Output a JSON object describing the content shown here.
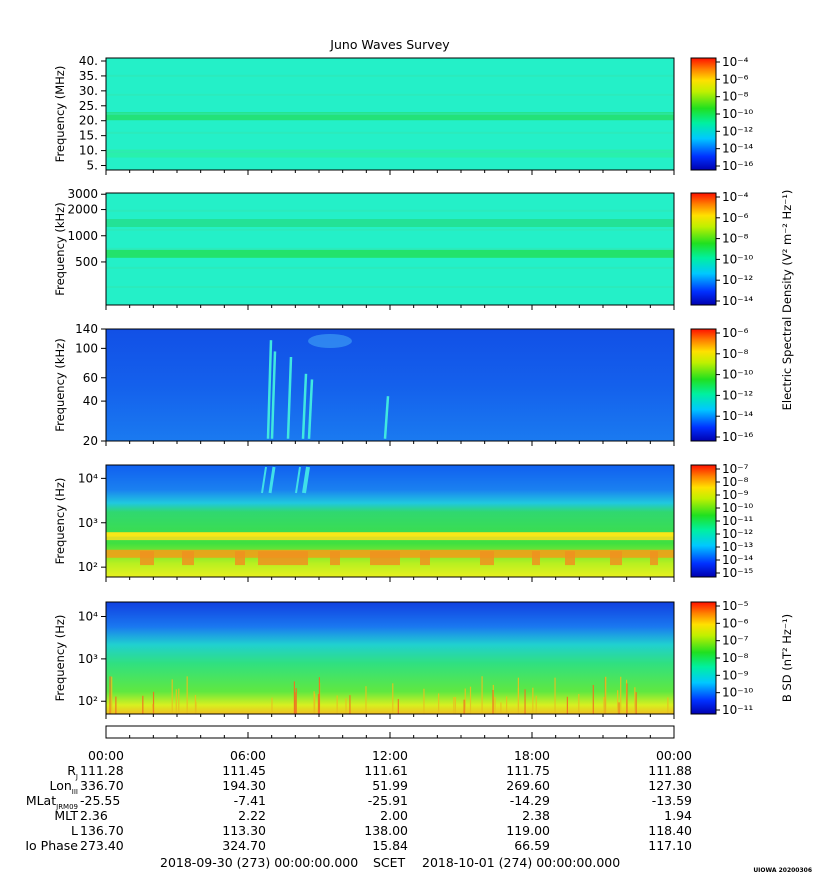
{
  "title": "Juno Waves Survey",
  "stamp": "UIOWA 20200306",
  "chart_data": [
    {
      "type": "heatmap",
      "ylabel": "Frequency (MHz)",
      "yscale": "linear",
      "ylim": [
        3.5,
        41
      ],
      "yticks": [
        5,
        10,
        15,
        20,
        25,
        30,
        35,
        40
      ],
      "yticklabels": [
        "5.",
        "10.",
        "15.",
        "20.",
        "25.",
        "30.",
        "35.",
        "40."
      ],
      "base_color": "#24f0c8",
      "bands": [
        {
          "y": 21.5,
          "color": "#24e070"
        },
        {
          "y": 9.0,
          "color": "#2af0a8"
        }
      ],
      "colorbar": {
        "exponents": [
          -4,
          -6,
          -8,
          -10,
          -12,
          -14,
          -16
        ],
        "label": ""
      }
    },
    {
      "type": "heatmap",
      "ylabel": "Frequency (kHz)",
      "yscale": "log",
      "ylim": [
        160,
        3100
      ],
      "yticks": [
        500,
        1000,
        2000,
        3000
      ],
      "yticklabels": [
        "500",
        "1000",
        "2000",
        "3000"
      ],
      "base_color": "#24f0c8",
      "bands": [
        {
          "y": 620,
          "color": "#24e060"
        },
        {
          "y": 1400,
          "color": "#24e090"
        }
      ],
      "colorbar": {
        "exponents": [
          -4,
          -6,
          -8,
          -10,
          -12,
          -14
        ],
        "label": "Electric Spectral Density (V² m⁻² Hz⁻¹)"
      }
    },
    {
      "type": "heatmap",
      "ylabel": "Frequency (kHz)",
      "yscale": "log",
      "ylim": [
        20,
        140
      ],
      "yticks": [
        20,
        40,
        60,
        100,
        140
      ],
      "yticklabels": [
        "20",
        "40",
        "60",
        "100",
        "140"
      ],
      "base_color": "#1460ec",
      "bands": [],
      "colorbar": {
        "exponents": [
          -6,
          -8,
          -10,
          -12,
          -14,
          -16
        ],
        "label": ""
      }
    },
    {
      "type": "heatmap",
      "ylabel": "Frequency (Hz)",
      "yscale": "log",
      "ylim": [
        60,
        20000
      ],
      "yticks": [
        100,
        1000,
        10000
      ],
      "yticklabels": [
        "10²",
        "10³",
        "10⁴"
      ],
      "base_color": "#48e830",
      "bands": [
        {
          "y": 500,
          "color": "#f0e020"
        },
        {
          "y": 200,
          "color": "#f0a018"
        }
      ],
      "colorbar": {
        "exponents": [
          -7,
          -8,
          -9,
          -10,
          -11,
          -12,
          -13,
          -14,
          -15
        ],
        "label": ""
      }
    },
    {
      "type": "heatmap",
      "ylabel": "Frequency (Hz)",
      "yscale": "log",
      "ylim": [
        50,
        22000
      ],
      "yticks": [
        100,
        1000,
        10000
      ],
      "yticklabels": [
        "10²",
        "10³",
        "10⁴"
      ],
      "base_color": "#30e860",
      "bands": [],
      "colorbar": {
        "exponents": [
          -5,
          -6,
          -7,
          -8,
          -9,
          -10,
          -11
        ],
        "label": "B SD (nT² Hz⁻¹)"
      }
    }
  ],
  "time_axis": {
    "labels": [
      "00:00",
      "06:00",
      "12:00",
      "18:00",
      "00:00"
    ]
  },
  "ephemeris": [
    {
      "label": "R",
      "sub": "J",
      "values": [
        "111.28",
        "111.45",
        "111.61",
        "111.75",
        "111.88"
      ]
    },
    {
      "label": "Lon",
      "sub": "III",
      "values": [
        "336.70",
        "194.30",
        "51.99",
        "269.60",
        "127.30"
      ]
    },
    {
      "label": "MLat",
      "sub": "JRM09",
      "values": [
        "-25.55",
        "-7.41",
        "-25.91",
        "-14.29",
        "-13.59"
      ]
    },
    {
      "label": "MLT",
      "sub": "",
      "values": [
        "2.36",
        "2.22",
        "2.00",
        "2.38",
        "1.94"
      ]
    },
    {
      "label": "L",
      "sub": "",
      "values": [
        "136.70",
        "113.30",
        "138.00",
        "119.00",
        "118.40"
      ]
    },
    {
      "label": "Io Phase",
      "sub": "",
      "values": [
        "273.40",
        "324.70",
        "15.84",
        "66.59",
        "117.10"
      ]
    }
  ],
  "footer": {
    "start": "2018-09-30 (273) 00:00:00.000",
    "scet": "SCET",
    "end": "2018-10-01 (274) 00:00:00.000"
  }
}
